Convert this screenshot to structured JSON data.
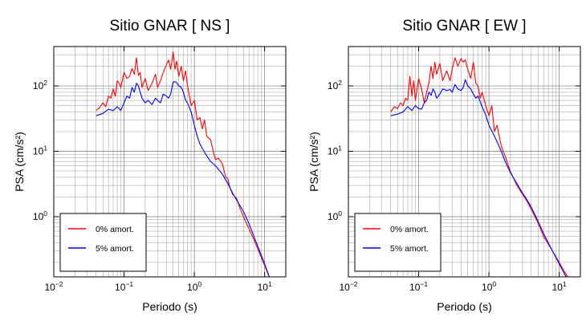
{
  "chart_data": [
    {
      "type": "line",
      "title": "Sitio GNAR [ NS ]",
      "xlabel": "Periodo (s)",
      "ylabel": "PSA (cm/s²)",
      "x_scale": "log",
      "y_scale": "log",
      "xlim": [
        0.01,
        20
      ],
      "ylim": [
        0.12,
        400
      ],
      "x_ticks": [
        {
          "value": 0.01,
          "base": "10",
          "exp": "−2"
        },
        {
          "value": 0.1,
          "base": "10",
          "exp": "−1"
        },
        {
          "value": 1,
          "base": "10",
          "exp": "0"
        },
        {
          "value": 10,
          "base": "10",
          "exp": "1"
        }
      ],
      "y_ticks": [
        {
          "value": 1,
          "base": "10",
          "exp": "0"
        },
        {
          "value": 10,
          "base": "10",
          "exp": "1"
        },
        {
          "value": 100,
          "base": "10",
          "exp": "2"
        }
      ],
      "grid": true,
      "legend_position": "bottom-left",
      "series": [
        {
          "name": "0% amort.",
          "color": "#ff0000",
          "x": [
            0.04,
            0.045,
            0.05,
            0.055,
            0.06,
            0.065,
            0.07,
            0.075,
            0.08,
            0.085,
            0.09,
            0.1,
            0.11,
            0.12,
            0.13,
            0.14,
            0.15,
            0.16,
            0.17,
            0.18,
            0.2,
            0.22,
            0.25,
            0.28,
            0.3,
            0.33,
            0.36,
            0.4,
            0.43,
            0.46,
            0.5,
            0.53,
            0.56,
            0.6,
            0.65,
            0.7,
            0.75,
            0.8,
            0.9,
            1.0,
            1.1,
            1.2,
            1.3,
            1.4,
            1.5,
            1.7,
            1.9,
            2.0,
            2.2,
            2.5,
            2.8,
            3.0,
            3.2,
            3.5,
            4.0,
            4.5,
            5.0,
            6.0,
            7.0,
            8.0,
            10.0,
            12.0
          ],
          "y": [
            42,
            47,
            55,
            48,
            70,
            65,
            90,
            70,
            120,
            110,
            95,
            160,
            130,
            140,
            185,
            150,
            270,
            145,
            160,
            95,
            130,
            85,
            110,
            150,
            95,
            120,
            160,
            210,
            250,
            180,
            330,
            180,
            240,
            140,
            200,
            120,
            170,
            100,
            50,
            60,
            30,
            33,
            22,
            30,
            17,
            15,
            9,
            7.5,
            7.8,
            6.5,
            4.0,
            3.8,
            2.8,
            2.2,
            1.9,
            1.3,
            1.0,
            0.65,
            0.45,
            0.32,
            0.18,
            0.11
          ]
        },
        {
          "name": "5% amort.",
          "color": "#0000ff",
          "x": [
            0.04,
            0.05,
            0.06,
            0.07,
            0.08,
            0.09,
            0.1,
            0.11,
            0.12,
            0.13,
            0.14,
            0.15,
            0.16,
            0.17,
            0.18,
            0.2,
            0.22,
            0.25,
            0.28,
            0.3,
            0.33,
            0.36,
            0.4,
            0.43,
            0.46,
            0.5,
            0.55,
            0.6,
            0.65,
            0.7,
            0.75,
            0.8,
            0.9,
            1.0,
            1.1,
            1.2,
            1.3,
            1.5,
            1.7,
            2.0,
            2.5,
            3.0,
            3.5,
            4.0,
            5.0,
            6.0,
            8.0,
            10.0,
            12.0
          ],
          "y": [
            35,
            38,
            44,
            42,
            48,
            42,
            55,
            70,
            65,
            95,
            80,
            110,
            100,
            80,
            65,
            55,
            60,
            52,
            65,
            60,
            55,
            75,
            70,
            65,
            75,
            115,
            115,
            100,
            95,
            80,
            60,
            55,
            40,
            25,
            17,
            13,
            11,
            8.5,
            7.0,
            6.0,
            4.5,
            3.2,
            2.3,
            1.8,
            1.2,
            0.78,
            0.35,
            0.19,
            0.11
          ]
        }
      ]
    },
    {
      "type": "line",
      "title": "Sitio GNAR [ EW ]",
      "xlabel": "Periodo (s)",
      "ylabel": "PSA (cm/s²)",
      "x_scale": "log",
      "y_scale": "log",
      "xlim": [
        0.01,
        20
      ],
      "ylim": [
        0.12,
        400
      ],
      "x_ticks": [
        {
          "value": 0.01,
          "base": "10",
          "exp": "−2"
        },
        {
          "value": 0.1,
          "base": "10",
          "exp": "−1"
        },
        {
          "value": 1,
          "base": "10",
          "exp": "0"
        },
        {
          "value": 10,
          "base": "10",
          "exp": "1"
        }
      ],
      "y_ticks": [
        {
          "value": 1,
          "base": "10",
          "exp": "0"
        },
        {
          "value": 10,
          "base": "10",
          "exp": "1"
        },
        {
          "value": 100,
          "base": "10",
          "exp": "2"
        }
      ],
      "grid": true,
      "legend_position": "bottom-left",
      "series": [
        {
          "name": "0% amort.",
          "color": "#ff0000",
          "x": [
            0.04,
            0.045,
            0.05,
            0.055,
            0.06,
            0.065,
            0.07,
            0.075,
            0.08,
            0.085,
            0.09,
            0.1,
            0.11,
            0.12,
            0.13,
            0.14,
            0.15,
            0.16,
            0.17,
            0.18,
            0.2,
            0.22,
            0.25,
            0.28,
            0.3,
            0.33,
            0.36,
            0.4,
            0.43,
            0.46,
            0.5,
            0.55,
            0.6,
            0.65,
            0.7,
            0.75,
            0.8,
            0.9,
            1.0,
            1.1,
            1.2,
            1.3,
            1.5,
            1.7,
            2.0,
            2.5,
            3.0,
            3.5,
            4.0,
            5.0,
            6.0,
            8.0,
            10.0,
            12.0,
            15.0
          ],
          "y": [
            40,
            48,
            45,
            55,
            50,
            65,
            60,
            140,
            70,
            120,
            60,
            130,
            90,
            55,
            80,
            110,
            200,
            130,
            230,
            150,
            220,
            120,
            170,
            120,
            180,
            270,
            200,
            260,
            230,
            250,
            180,
            130,
            230,
            110,
            100,
            65,
            80,
            50,
            35,
            50,
            20,
            25,
            12,
            8.5,
            5.0,
            3.0,
            2.2,
            1.7,
            1.3,
            0.8,
            0.5,
            0.3,
            0.2,
            0.14,
            0.1
          ]
        },
        {
          "name": "5% amort.",
          "color": "#0000ff",
          "x": [
            0.04,
            0.05,
            0.06,
            0.07,
            0.08,
            0.09,
            0.1,
            0.11,
            0.12,
            0.13,
            0.14,
            0.15,
            0.16,
            0.17,
            0.18,
            0.2,
            0.22,
            0.25,
            0.28,
            0.3,
            0.33,
            0.36,
            0.4,
            0.43,
            0.46,
            0.5,
            0.55,
            0.6,
            0.65,
            0.7,
            0.8,
            0.9,
            1.0,
            1.2,
            1.5,
            1.7,
            2.0,
            2.5,
            3.0,
            3.5,
            4.0,
            5.0,
            6.0,
            8.0,
            10.0,
            12.0,
            15.0
          ],
          "y": [
            35,
            37,
            40,
            48,
            42,
            50,
            45,
            44,
            55,
            60,
            80,
            72,
            90,
            80,
            65,
            75,
            90,
            85,
            88,
            80,
            105,
            90,
            85,
            95,
            125,
            100,
            90,
            75,
            65,
            70,
            48,
            36,
            25,
            17,
            10,
            7,
            4.8,
            3.2,
            2.3,
            1.8,
            1.4,
            0.85,
            0.55,
            0.3,
            0.19,
            0.13,
            0.085
          ]
        }
      ]
    }
  ]
}
